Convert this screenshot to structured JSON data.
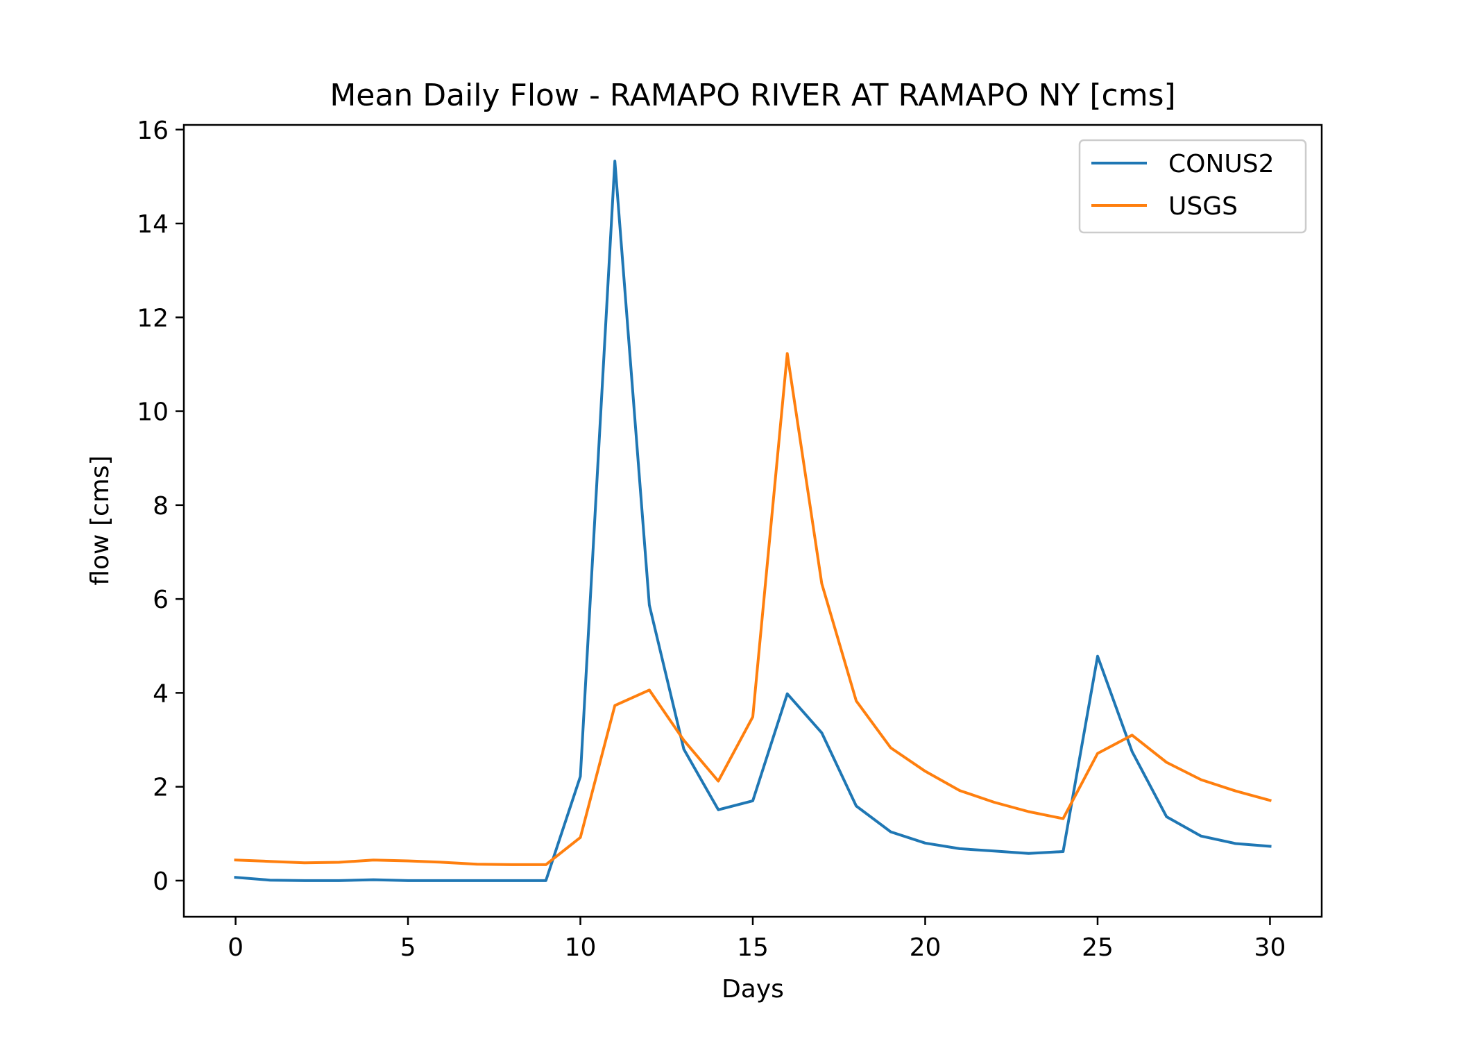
{
  "chart_data": {
    "type": "line",
    "title": "Mean Daily Flow - RAMAPO RIVER AT RAMAPO NY [cms]",
    "xlabel": "Days",
    "ylabel": "flow [cms]",
    "xlim": [
      -1.5,
      31.5
    ],
    "ylim": [
      -0.77,
      16.1
    ],
    "xticks": [
      0,
      5,
      10,
      15,
      20,
      25,
      30
    ],
    "yticks": [
      0,
      2,
      4,
      6,
      8,
      10,
      12,
      14,
      16
    ],
    "grid": false,
    "legend_position": "upper-right",
    "x": [
      0,
      1,
      2,
      3,
      4,
      5,
      6,
      7,
      8,
      9,
      10,
      11,
      12,
      13,
      14,
      15,
      16,
      17,
      18,
      19,
      20,
      21,
      22,
      23,
      24,
      25,
      26,
      27,
      28,
      29,
      30
    ],
    "series": [
      {
        "name": "CONUS2",
        "color": "#1f77b4",
        "values": [
          0.07,
          0.01,
          0.0,
          0.0,
          0.02,
          0.0,
          0.0,
          0.0,
          0.0,
          0.0,
          2.22,
          15.33,
          5.87,
          2.8,
          1.51,
          1.7,
          3.98,
          3.15,
          1.59,
          1.04,
          0.8,
          0.68,
          0.63,
          0.58,
          0.62,
          4.78,
          2.75,
          1.36,
          0.95,
          0.79,
          0.73
        ]
      },
      {
        "name": "USGS",
        "color": "#ff7f0e",
        "values": [
          0.44,
          0.41,
          0.38,
          0.39,
          0.44,
          0.42,
          0.39,
          0.35,
          0.34,
          0.34,
          0.92,
          3.73,
          4.06,
          2.99,
          2.12,
          3.49,
          11.23,
          6.33,
          3.83,
          2.83,
          2.33,
          1.92,
          1.67,
          1.47,
          1.32,
          2.71,
          3.1,
          2.52,
          2.15,
          1.91,
          1.71
        ]
      }
    ]
  }
}
